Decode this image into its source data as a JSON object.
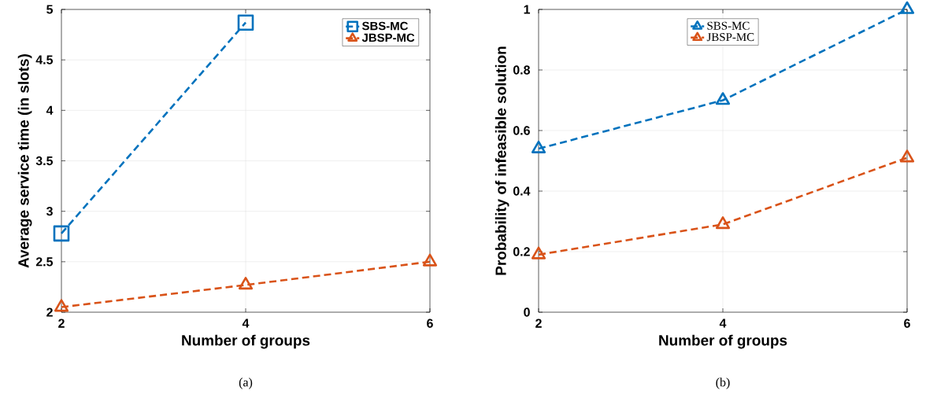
{
  "chart_data": [
    {
      "type": "line",
      "xlabel": "Number of groups",
      "ylabel": "Average service time (in slots)",
      "x": [
        2,
        4,
        6
      ],
      "xlim": [
        2,
        6
      ],
      "xticks": [
        2,
        4,
        6
      ],
      "ylim": [
        2,
        5
      ],
      "yticks": [
        2,
        2.5,
        3,
        3.5,
        4,
        4.5,
        5
      ],
      "grid": true,
      "legend": "top right",
      "line_style": "dashed",
      "series": [
        {
          "name": "SBS-MC",
          "color": "#0072bd",
          "marker": "square",
          "values": [
            2.78,
            4.87,
            null
          ]
        },
        {
          "name": "JBSP-MC",
          "color": "#d95319",
          "marker": "triangle",
          "values": [
            2.05,
            2.27,
            2.5
          ]
        }
      ],
      "annotations": [
        "(a)"
      ]
    },
    {
      "type": "line",
      "xlabel": "Number of groups",
      "ylabel": "Probability of infeasible solution",
      "x": [
        2,
        4,
        6
      ],
      "xlim": [
        2,
        6
      ],
      "xticks": [
        2,
        4,
        6
      ],
      "ylim": [
        0,
        1
      ],
      "yticks": [
        0,
        0.2,
        0.4,
        0.6,
        0.8,
        1
      ],
      "grid": true,
      "legend": "top",
      "line_style": "dashed",
      "series": [
        {
          "name": "SBS-MC",
          "color": "#0072bd",
          "marker": "triangle",
          "values": [
            0.54,
            0.7,
            1.0
          ]
        },
        {
          "name": "JBSP-MC",
          "color": "#d95319",
          "marker": "triangle",
          "values": [
            0.19,
            0.29,
            0.51
          ]
        }
      ],
      "annotations": [
        "(b)"
      ]
    }
  ]
}
